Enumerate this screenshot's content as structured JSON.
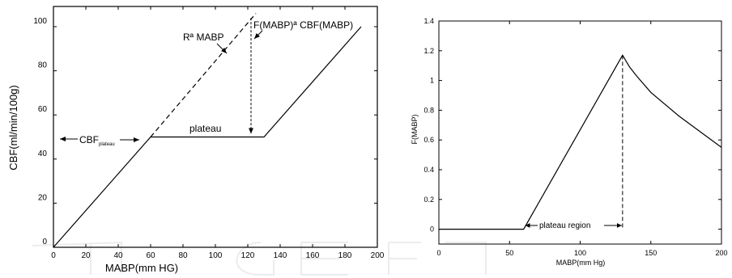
{
  "chart_data": [
    {
      "type": "line",
      "xlabel": "MABP(mm HG)",
      "ylabel": "CBF(ml/min/100g)",
      "xlim": [
        0,
        200
      ],
      "ylim": [
        0,
        110
      ],
      "xticks": [
        "0",
        "20",
        "40",
        "60",
        "80",
        "100",
        "120",
        "140",
        "160",
        "180",
        "200"
      ],
      "yticks": [
        "0",
        "20",
        "40",
        "60",
        "80",
        "100"
      ],
      "grid": false,
      "series": [
        {
          "style": "solid",
          "x": [
            0,
            60,
            130,
            190
          ],
          "y": [
            0,
            50,
            50,
            100
          ]
        },
        {
          "style": "dashed",
          "x": [
            60,
            125
          ],
          "y": [
            50,
            106
          ]
        }
      ],
      "annotations": {
        "r_label": "Rª MABP",
        "f_label": "F(MABP)ª CBF(MABP)",
        "plateau_label": "plateau",
        "cbf_label": "CBF",
        "cbf_sub": "plateau"
      }
    },
    {
      "type": "line",
      "xlabel": "MABP(mm Hg)",
      "ylabel": "F(MABP)",
      "xlim": [
        0,
        200
      ],
      "ylim": [
        -0.1,
        1.4
      ],
      "xticks": [
        "0",
        "50",
        "100",
        "150",
        "200"
      ],
      "yticks": [
        "0",
        "0.2",
        "0.4",
        "0.6",
        "0.8",
        "1",
        "1.2",
        "1.4"
      ],
      "grid": false,
      "series": [
        {
          "style": "solid",
          "x": [
            0,
            60,
            130,
            135,
            140,
            150,
            160,
            170,
            180,
            190,
            200
          ],
          "y": [
            0,
            0,
            1.17,
            1.09,
            1.03,
            0.92,
            0.84,
            0.76,
            0.69,
            0.62,
            0.55
          ]
        }
      ],
      "annotations": {
        "region_label": "plateau region",
        "marker_x": 130
      }
    }
  ]
}
